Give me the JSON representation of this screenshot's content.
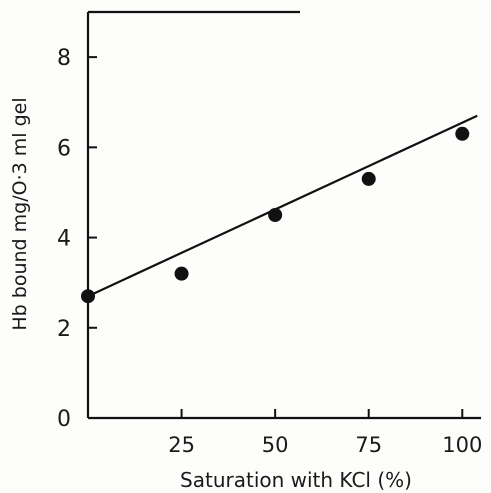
{
  "chart_data": {
    "type": "scatter",
    "title": "",
    "xlabel": "Saturation with KCl (%)",
    "ylabel": "Hb bound mg/O·3 ml gel",
    "xlim": [
      0,
      105
    ],
    "ylim": [
      0,
      9
    ],
    "x_ticks": [
      25,
      50,
      75,
      100
    ],
    "y_ticks": [
      0,
      2,
      4,
      6,
      8
    ],
    "grid": false,
    "series": [
      {
        "x": [
          0,
          25,
          50,
          75,
          100
        ],
        "y": [
          2.7,
          3.2,
          4.5,
          5.3,
          6.3
        ],
        "marker": "filled-circle",
        "color": "#111111"
      }
    ],
    "fit_line": {
      "x": [
        0,
        104
      ],
      "y": [
        2.7,
        6.7
      ],
      "color": "#111111"
    }
  }
}
